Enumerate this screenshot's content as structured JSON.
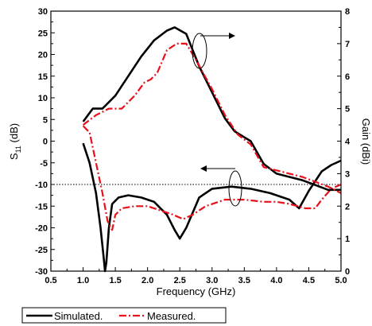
{
  "chart_data": {
    "type": "line",
    "xlabel": "Frequency (GHz)",
    "ylabel_left": "S11 (dB)",
    "ylabel_left_main": "S",
    "ylabel_left_sub": "11",
    "ylabel_left_unit": " (dB)",
    "ylabel_right": "Gain (dBi)",
    "xlim": [
      0.5,
      5.0
    ],
    "ylim_left": [
      -30,
      30
    ],
    "ylim_right": [
      0,
      8
    ],
    "x_ticks": [
      "0.5",
      "1.0",
      "1.5",
      "2.0",
      "2.5",
      "3.0",
      "3.5",
      "4.0",
      "4.5",
      "5.0"
    ],
    "y_left_ticks": [
      "-30",
      "-25",
      "-20",
      "-15",
      "-10",
      "-5",
      "0",
      "5",
      "10",
      "15",
      "20",
      "25",
      "30"
    ],
    "y_right_ticks": [
      "0",
      "1",
      "2",
      "3",
      "4",
      "5",
      "6",
      "7",
      "8"
    ],
    "reference_line": {
      "axis": "left",
      "y": -10,
      "style": "dotted"
    },
    "legend": {
      "placement": "bottom-left",
      "entries": [
        "Simulated.",
        "Measured."
      ]
    },
    "colors": {
      "simulated": "#000000",
      "measured": "#e8101a"
    },
    "series": [
      {
        "name": "Simulated.",
        "group": "S11",
        "axis": "left",
        "style": "solid",
        "x": [
          1.0,
          1.1,
          1.2,
          1.27,
          1.32,
          1.34,
          1.36,
          1.4,
          1.45,
          1.55,
          1.7,
          1.9,
          2.1,
          2.3,
          2.42,
          2.5,
          2.6,
          2.8,
          3.0,
          3.3,
          3.6,
          3.9,
          4.2,
          4.35,
          4.5,
          4.7,
          4.85,
          5.0
        ],
        "y": [
          -0.5,
          -5,
          -12,
          -20,
          -27,
          -30,
          -28,
          -20,
          -14.5,
          -13,
          -12.5,
          -13,
          -14,
          -17,
          -20.5,
          -22.5,
          -20,
          -13,
          -11,
          -10.5,
          -11,
          -12,
          -13.5,
          -15.5,
          -11.5,
          -7,
          -5.5,
          -4.5
        ]
      },
      {
        "name": "Measured.",
        "group": "S11",
        "axis": "left",
        "style": "dash-dot",
        "x": [
          1.0,
          1.1,
          1.2,
          1.3,
          1.38,
          1.45,
          1.5,
          1.6,
          1.8,
          2.0,
          2.2,
          2.4,
          2.55,
          2.7,
          2.9,
          3.2,
          3.5,
          3.8,
          4.0,
          4.2,
          4.45,
          4.6,
          4.7,
          4.85,
          5.0
        ],
        "y": [
          3.5,
          2,
          -5,
          -12,
          -18.5,
          -20.5,
          -17,
          -15.5,
          -15,
          -15,
          -16,
          -17,
          -18,
          -17,
          -15,
          -13.5,
          -13.5,
          -14,
          -14,
          -14.5,
          -15.5,
          -15.5,
          -13.5,
          -11,
          -10
        ]
      },
      {
        "name": "Simulated.",
        "group": "Gain",
        "axis": "right",
        "style": "solid",
        "x": [
          1.0,
          1.15,
          1.3,
          1.5,
          1.7,
          1.9,
          2.1,
          2.3,
          2.42,
          2.6,
          2.8,
          3.0,
          3.2,
          3.35,
          3.6,
          3.8,
          4.0,
          4.2,
          4.4,
          4.6,
          4.8,
          5.0
        ],
        "y": [
          4.6,
          5.0,
          5.0,
          5.4,
          6.0,
          6.6,
          7.1,
          7.4,
          7.5,
          7.3,
          6.3,
          5.5,
          4.7,
          4.3,
          4.0,
          3.3,
          3.0,
          2.9,
          2.8,
          2.65,
          2.5,
          2.5
        ]
      },
      {
        "name": "Measured.",
        "group": "Gain",
        "axis": "right",
        "style": "dash-dot",
        "x": [
          1.0,
          1.2,
          1.4,
          1.6,
          1.8,
          1.95,
          2.05,
          2.15,
          2.3,
          2.45,
          2.6,
          2.75,
          3.0,
          3.2,
          3.4,
          3.6,
          3.8,
          4.0,
          4.2,
          4.4,
          4.6,
          4.8,
          5.0
        ],
        "y": [
          4.5,
          4.8,
          5.0,
          5.0,
          5.4,
          5.8,
          5.9,
          6.1,
          6.8,
          7.0,
          7.0,
          6.5,
          5.6,
          4.8,
          4.2,
          3.9,
          3.2,
          3.1,
          3.0,
          2.9,
          2.75,
          2.6,
          2.4
        ]
      }
    ]
  }
}
